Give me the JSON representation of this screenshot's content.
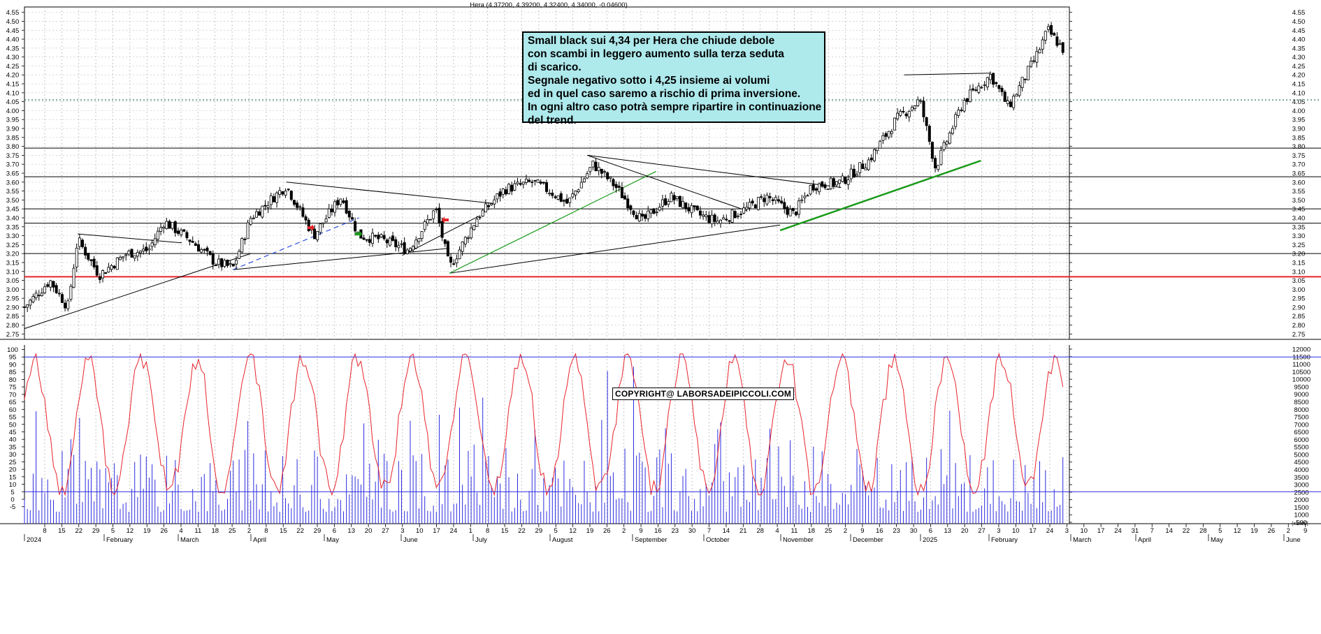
{
  "chart_data": {
    "type": "candlestick",
    "title": "Hera (4.37200, 4.39200, 4.32400, 4.34000, -0.04600)",
    "price_axis": {
      "ylim": [
        2.72,
        4.58
      ],
      "ticks": [
        "2.75",
        "2.80",
        "2.85",
        "2.90",
        "2.95",
        "3.00",
        "3.05",
        "3.10",
        "3.15",
        "3.20",
        "3.25",
        "3.30",
        "3.35",
        "3.40",
        "3.45",
        "3.50",
        "3.55",
        "3.60",
        "3.65",
        "3.70",
        "3.75",
        "3.80",
        "3.85",
        "3.90",
        "3.95",
        "4.00",
        "4.05",
        "4.10",
        "4.15",
        "4.20",
        "4.25",
        "4.30",
        "4.35",
        "4.40",
        "4.45",
        "4.50",
        "4.55"
      ]
    },
    "oscillator_axis": {
      "ylim": [
        -5,
        100
      ],
      "ticks": [
        "-5",
        "0",
        "5",
        "10",
        "15",
        "20",
        "25",
        "30",
        "35",
        "40",
        "45",
        "50",
        "55",
        "60",
        "65",
        "70",
        "75",
        "80",
        "85",
        "90",
        "95",
        "100"
      ]
    },
    "volume_axis": {
      "ticks": [
        "500",
        "1000",
        "1500",
        "2000",
        "2500",
        "3000",
        "3500",
        "4000",
        "4500",
        "5000",
        "5500",
        "6000",
        "6500",
        "7000",
        "7500",
        "8000",
        "8500",
        "9000",
        "9500",
        "10000",
        "10500",
        "11000",
        "11500",
        "12000"
      ],
      "unit_label": "(x1000)"
    },
    "x_axis": {
      "day_ticks": [
        "8",
        "15",
        "22",
        "29",
        "5",
        "12",
        "19",
        "26",
        "4",
        "11",
        "18",
        "25",
        "2",
        "8",
        "15",
        "22",
        "29",
        "6",
        "13",
        "20",
        "27",
        "3",
        "10",
        "17",
        "24",
        "1",
        "8",
        "15",
        "22",
        "29",
        "5",
        "12",
        "19",
        "26",
        "2",
        "9",
        "16",
        "23",
        "30",
        "7",
        "14",
        "21",
        "28",
        "4",
        "11",
        "18",
        "25",
        "2",
        "9",
        "16",
        "23",
        "30",
        "6",
        "13",
        "20",
        "27",
        "3",
        "10",
        "17",
        "24",
        "3",
        "10",
        "17",
        "24",
        "31",
        "7",
        "14",
        "22",
        "28",
        "5",
        "12",
        "19",
        "26",
        "2",
        "9",
        "16"
      ],
      "month_labels": [
        "2024",
        "February",
        "March",
        "April",
        "May",
        "June",
        "July",
        "August",
        "September",
        "October",
        "November",
        "December",
        "2025",
        "February",
        "March",
        "April",
        "May",
        "June"
      ]
    },
    "horizontal_levels": [
      3.79,
      3.63,
      3.45,
      3.37,
      3.2
    ],
    "support_level_red": 3.07,
    "dotted_resistance": 4.06,
    "oscillator_levels": [
      95,
      5
    ],
    "price_path": [
      [
        "2024-01-02",
        2.9
      ],
      [
        "2024-01-15",
        3.05
      ],
      [
        "2024-01-24",
        2.9
      ],
      [
        "2024-01-29",
        3.28
      ],
      [
        "2024-02-09",
        3.08
      ],
      [
        "2024-02-23",
        3.2
      ],
      [
        "2024-03-05",
        3.22
      ],
      [
        "2024-03-13",
        3.38
      ],
      [
        "2024-03-27",
        3.27
      ],
      [
        "2024-04-08",
        3.15
      ],
      [
        "2024-04-17",
        3.12
      ],
      [
        "2024-04-26",
        3.4
      ],
      [
        "2024-05-14",
        3.58
      ],
      [
        "2024-05-28",
        3.3
      ],
      [
        "2024-06-11",
        3.52
      ],
      [
        "2024-06-20",
        3.3
      ],
      [
        "2024-07-01",
        3.28
      ],
      [
        "2024-07-15",
        3.22
      ],
      [
        "2024-07-29",
        3.45
      ],
      [
        "2024-08-05",
        3.12
      ],
      [
        "2024-08-19",
        3.4
      ],
      [
        "2024-09-02",
        3.56
      ],
      [
        "2024-09-16",
        3.6
      ],
      [
        "2024-09-25",
        3.55
      ],
      [
        "2024-10-04",
        3.48
      ],
      [
        "2024-10-17",
        3.7
      ],
      [
        "2024-10-28",
        3.58
      ],
      [
        "2024-11-11",
        3.38
      ],
      [
        "2024-11-25",
        3.52
      ],
      [
        "2024-12-09",
        3.42
      ],
      [
        "2024-12-19",
        3.38
      ],
      [
        "2025-01-03",
        3.45
      ],
      [
        "2025-01-13",
        3.52
      ],
      [
        "2025-01-27",
        3.42
      ],
      [
        "2025-02-05",
        3.58
      ],
      [
        "2025-02-20",
        3.6
      ],
      [
        "2025-03-06",
        3.72
      ],
      [
        "2025-03-20",
        3.95
      ],
      [
        "2025-04-01",
        4.06
      ],
      [
        "2025-04-09",
        3.68
      ],
      [
        "2025-04-23",
        4.05
      ],
      [
        "2025-05-07",
        4.2
      ],
      [
        "2025-05-16",
        4.02
      ],
      [
        "2025-05-30",
        4.3
      ],
      [
        "2025-06-05",
        4.45
      ],
      [
        "2025-06-13",
        4.34
      ]
    ]
  },
  "annotation": {
    "lines": [
      "Small black sui 4,34 per Hera che chiude debole",
      "con scambi in leggero aumento sulla terza seduta",
      "di scarico.",
      "Segnale negativo sotto i 4,25 insieme ai volumi",
      "ed in quel caso saremo a rischio di prima inversione.",
      "In ogni altro caso potrà sempre ripartire in continuazione",
      "del trend."
    ]
  },
  "copyright": "COPYRIGHT@ LABORSADEIPICCOLI.COM",
  "colors": {
    "candle": "#000000",
    "support": "#e8242a",
    "oscillator": "#e8242a",
    "volume": "#2d2de0",
    "trend_green": "#1a9a1a",
    "trend_blue_dashed": "#3050e0",
    "annotation_bg": "#aee9ec"
  }
}
